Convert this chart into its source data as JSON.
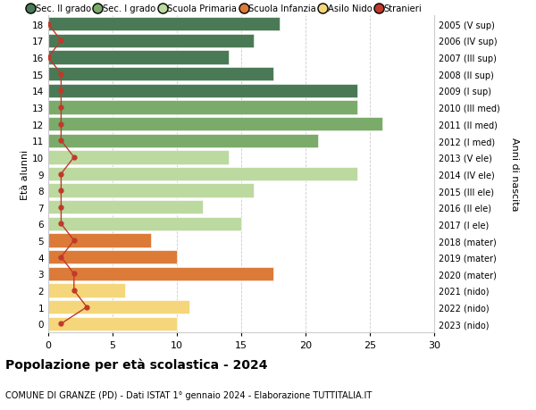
{
  "ages": [
    18,
    17,
    16,
    15,
    14,
    13,
    12,
    11,
    10,
    9,
    8,
    7,
    6,
    5,
    4,
    3,
    2,
    1,
    0
  ],
  "anni_nascita": [
    "2005 (V sup)",
    "2006 (IV sup)",
    "2007 (III sup)",
    "2008 (II sup)",
    "2009 (I sup)",
    "2010 (III med)",
    "2011 (II med)",
    "2012 (I med)",
    "2013 (V ele)",
    "2014 (IV ele)",
    "2015 (III ele)",
    "2016 (II ele)",
    "2017 (I ele)",
    "2018 (mater)",
    "2019 (mater)",
    "2020 (mater)",
    "2021 (nido)",
    "2022 (nido)",
    "2023 (nido)"
  ],
  "bar_values": [
    18,
    16,
    14,
    17.5,
    24,
    24,
    26,
    21,
    14,
    24,
    16,
    12,
    15,
    8,
    10,
    17.5,
    6,
    11,
    10
  ],
  "bar_colors": [
    "#4a7a55",
    "#4a7a55",
    "#4a7a55",
    "#4a7a55",
    "#4a7a55",
    "#7aab6b",
    "#7aab6b",
    "#7aab6b",
    "#bcd9a0",
    "#bcd9a0",
    "#bcd9a0",
    "#bcd9a0",
    "#bcd9a0",
    "#dc7a38",
    "#dc7a38",
    "#dc7a38",
    "#f5d67a",
    "#f5d67a",
    "#f5d67a"
  ],
  "stranieri_values": [
    0,
    1,
    0,
    1,
    1,
    1,
    1,
    1,
    2,
    1,
    1,
    1,
    1,
    2,
    1,
    2,
    2,
    3,
    1
  ],
  "legend_labels": [
    "Sec. II grado",
    "Sec. I grado",
    "Scuola Primaria",
    "Scuola Infanzia",
    "Asilo Nido",
    "Stranieri"
  ],
  "legend_colors": [
    "#4a7a55",
    "#7aab6b",
    "#bcd9a0",
    "#dc7a38",
    "#f5d67a",
    "#c0392b"
  ],
  "title": "Popolazione per età scolastica - 2024",
  "subtitle": "COMUNE DI GRANZE (PD) - Dati ISTAT 1° gennaio 2024 - Elaborazione TUTTITALIA.IT",
  "ylabel": "Età alunni",
  "right_ylabel": "Anni di nascita",
  "xlim": [
    0,
    30
  ],
  "xticks": [
    0,
    5,
    10,
    15,
    20,
    25,
    30
  ],
  "ylim": [
    -0.5,
    18.5
  ],
  "bar_height": 0.82,
  "background_color": "#ffffff",
  "grid_color": "#cccccc",
  "stranieri_color": "#c0392b"
}
